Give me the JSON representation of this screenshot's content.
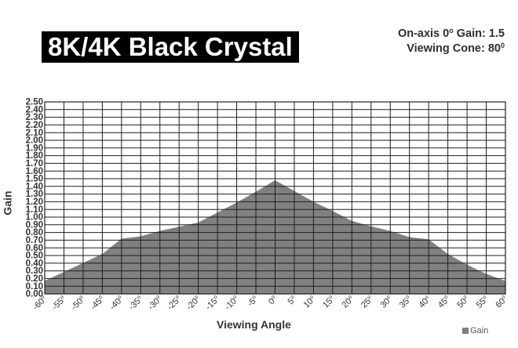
{
  "header": {
    "title": "8K/4K Black Crystal",
    "gain_label": "On-axis 0",
    "gain_label_deg": "o",
    "gain_value": " Gain: 1.5",
    "cone_label": "Viewing Cone: 80",
    "cone_deg": "0"
  },
  "chart_data": {
    "type": "area",
    "title": "",
    "xlabel": "Viewing Angle",
    "ylabel": "Gain",
    "xlim": [
      -60,
      60
    ],
    "ylim": [
      0,
      2.5
    ],
    "y_ticks": [
      "0.00",
      "0.10",
      "0.20",
      "0.30",
      "0.40",
      "0.50",
      "0.60",
      "0.70",
      "0.80",
      "0.90",
      "1.00",
      "1.10",
      "1.20",
      "1.30",
      "1.40",
      "1.50",
      "1.60",
      "1.70",
      "1.80",
      "1.90",
      "2.00",
      "2.10",
      "2.20",
      "2.30",
      "2.40",
      "2.50"
    ],
    "x_ticks": [
      "-60",
      "-55",
      "-50",
      "-45",
      "-40",
      "-35",
      "-30",
      "-25",
      "-20",
      "-15",
      "-10",
      "-5",
      "0",
      "5",
      "10",
      "15",
      "20",
      "25",
      "30",
      "35",
      "40",
      "45",
      "50",
      "55",
      "60"
    ],
    "x_tick_suffix": "o",
    "grid": true,
    "legend": "bottom-right",
    "series": [
      {
        "name": "Gain",
        "color": "#808080",
        "x": [
          -60,
          -45,
          -40,
          -35,
          -30,
          -20,
          -15,
          -10,
          -5,
          0,
          5,
          10,
          15,
          20,
          25,
          30,
          35,
          40,
          45,
          50,
          55,
          60
        ],
        "values": [
          0.17,
          0.52,
          0.72,
          0.75,
          0.82,
          0.93,
          1.06,
          1.19,
          1.33,
          1.48,
          1.34,
          1.2,
          1.08,
          0.95,
          0.88,
          0.82,
          0.74,
          0.71,
          0.52,
          0.38,
          0.26,
          0.17
        ]
      }
    ]
  },
  "legend_text": "Gain"
}
